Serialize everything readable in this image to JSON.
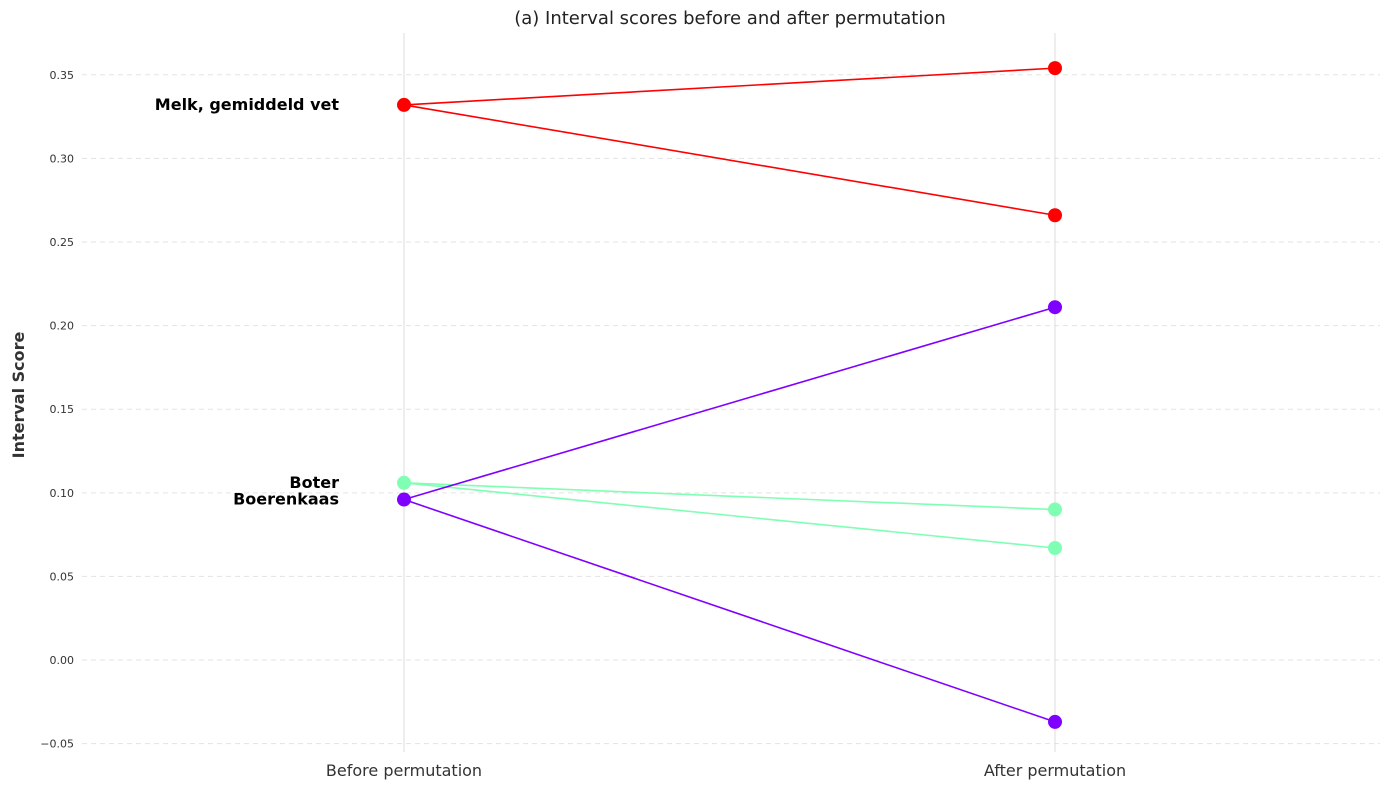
{
  "chart_data": {
    "type": "line",
    "title": "(a) Interval scores before and after permutation",
    "xlabel": "",
    "ylabel": "Interval Score",
    "categories": [
      "Before permutation",
      "After permutation"
    ],
    "ylim": [
      -0.055,
      0.375
    ],
    "yticks": [
      -0.05,
      0.0,
      0.05,
      0.1,
      0.15,
      0.2,
      0.25,
      0.3,
      0.35
    ],
    "ytick_labels": [
      "−0.05",
      "0.00",
      "0.05",
      "0.10",
      "0.15",
      "0.20",
      "0.25",
      "0.30",
      "0.35"
    ],
    "grid": "horizontal dashed",
    "items": [
      {
        "label": "Melk, gemiddeld vet",
        "color": "#ff0000",
        "before": 0.332,
        "after": [
          0.354,
          0.266
        ]
      },
      {
        "label": "Boter",
        "color": "#80ffb4",
        "before": 0.106,
        "after": [
          0.09,
          0.067
        ]
      },
      {
        "label": "Boerenkaas",
        "color": "#8000ff",
        "before": 0.096,
        "after": [
          0.211,
          -0.037
        ]
      }
    ]
  }
}
